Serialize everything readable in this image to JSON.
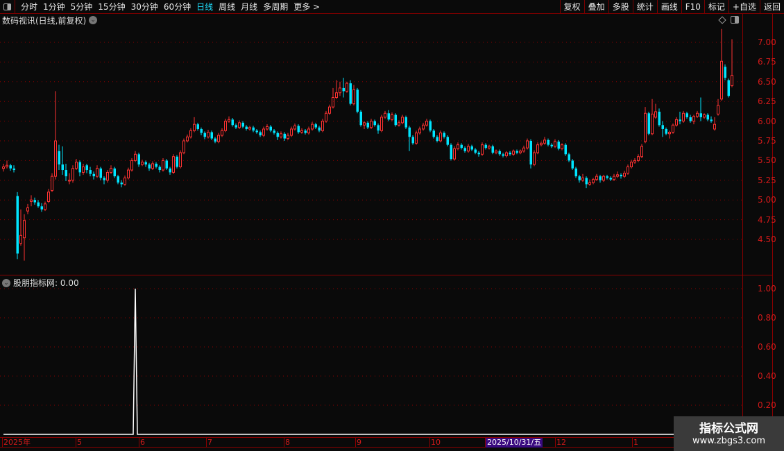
{
  "toolbar": {
    "periods": [
      "分时",
      "1分钟",
      "5分钟",
      "15分钟",
      "30分钟",
      "60分钟",
      "日线",
      "周线",
      "月线",
      "多周期",
      "更多 >"
    ],
    "active_period": "日线",
    "buttons": [
      "复权",
      "叠加",
      "多股",
      "统计",
      "画线",
      "F10",
      "标记",
      "+自选",
      "返回"
    ]
  },
  "chart_title": "数码视讯(日线,前复权)",
  "indicator": {
    "name": "股朋指标网",
    "value_text": ": 0.00"
  },
  "colors": {
    "up": "#ff3232",
    "down": "#00e5ff",
    "axis": "#d21a1a",
    "grid": "#8b0000",
    "indicator_line": "#ffffff",
    "background": "#0a0a0a"
  },
  "xaxis": {
    "labels": [
      "2025年",
      "5",
      "6",
      "7",
      "8",
      "9",
      "10",
      "12",
      "1"
    ],
    "cursor_label": "2025/10/31/五"
  },
  "watermark": {
    "line1": "指标公式网",
    "line2": "www.zbgs3.com"
  },
  "chart_data": [
    {
      "type": "candlestick",
      "title": "数码视讯(日线,前复权)",
      "ylim": [
        4.2,
        7.25
      ],
      "yticks": [
        "7.00",
        "6.75",
        "6.50",
        "6.25",
        "6.00",
        "5.75",
        "5.50",
        "5.25",
        "5.00",
        "4.75",
        "4.50"
      ],
      "grid": true,
      "ohlc": [
        [
          5.4,
          5.46,
          5.36,
          5.42
        ],
        [
          5.42,
          5.5,
          5.4,
          5.44
        ],
        [
          5.44,
          5.46,
          5.37,
          5.4
        ],
        [
          5.4,
          5.44,
          5.35,
          5.38
        ],
        [
          5.05,
          5.1,
          4.25,
          4.32
        ],
        [
          4.45,
          4.88,
          4.42,
          4.55
        ],
        [
          4.52,
          4.82,
          4.23,
          4.74
        ],
        [
          4.86,
          4.95,
          4.82,
          4.9
        ],
        [
          4.98,
          5.06,
          4.92,
          5.0
        ],
        [
          5.0,
          5.03,
          4.94,
          4.97
        ],
        [
          4.97,
          5.0,
          4.9,
          4.92
        ],
        [
          4.92,
          4.96,
          4.85,
          4.88
        ],
        [
          4.88,
          4.98,
          4.86,
          4.95
        ],
        [
          4.98,
          5.14,
          4.96,
          5.1
        ],
        [
          5.12,
          5.34,
          5.1,
          5.3
        ],
        [
          5.3,
          6.38,
          5.26,
          5.75
        ],
        [
          5.62,
          5.7,
          5.38,
          5.45
        ],
        [
          5.45,
          5.68,
          5.32,
          5.38
        ],
        [
          5.38,
          5.46,
          5.24,
          5.3
        ],
        [
          5.24,
          5.34,
          5.2,
          5.25
        ],
        [
          5.25,
          5.44,
          5.22,
          5.4
        ],
        [
          5.4,
          5.52,
          5.38,
          5.48
        ],
        [
          5.48,
          5.5,
          5.3,
          5.35
        ],
        [
          5.35,
          5.46,
          5.32,
          5.42
        ],
        [
          5.44,
          5.46,
          5.34,
          5.38
        ],
        [
          5.38,
          5.42,
          5.3,
          5.33
        ],
        [
          5.33,
          5.36,
          5.26,
          5.3
        ],
        [
          5.3,
          5.44,
          5.28,
          5.4
        ],
        [
          5.4,
          5.42,
          5.25,
          5.28
        ],
        [
          5.28,
          5.3,
          5.2,
          5.25
        ],
        [
          5.25,
          5.38,
          5.22,
          5.35
        ],
        [
          5.35,
          5.44,
          5.33,
          5.4
        ],
        [
          5.4,
          5.42,
          5.28,
          5.3
        ],
        [
          5.3,
          5.32,
          5.2,
          5.22
        ],
        [
          5.22,
          5.25,
          5.16,
          5.2
        ],
        [
          5.2,
          5.31,
          5.18,
          5.28
        ],
        [
          5.28,
          5.41,
          5.26,
          5.38
        ],
        [
          5.38,
          5.53,
          5.36,
          5.5
        ],
        [
          5.5,
          5.62,
          5.48,
          5.58
        ],
        [
          5.58,
          5.6,
          5.42,
          5.45
        ],
        [
          5.45,
          5.51,
          5.43,
          5.48
        ],
        [
          5.48,
          5.5,
          5.42,
          5.45
        ],
        [
          5.45,
          5.47,
          5.37,
          5.4
        ],
        [
          5.4,
          5.49,
          5.38,
          5.46
        ],
        [
          5.46,
          5.48,
          5.4,
          5.42
        ],
        [
          5.42,
          5.44,
          5.35,
          5.38
        ],
        [
          5.38,
          5.53,
          5.36,
          5.5
        ],
        [
          5.5,
          5.52,
          5.38,
          5.4
        ],
        [
          5.4,
          5.42,
          5.32,
          5.35
        ],
        [
          5.35,
          5.58,
          5.33,
          5.55
        ],
        [
          5.55,
          5.57,
          5.4,
          5.42
        ],
        [
          5.42,
          5.63,
          5.4,
          5.6
        ],
        [
          5.6,
          5.78,
          5.58,
          5.75
        ],
        [
          5.75,
          5.83,
          5.73,
          5.8
        ],
        [
          5.8,
          5.91,
          5.78,
          5.88
        ],
        [
          5.88,
          6.05,
          5.86,
          5.96
        ],
        [
          5.96,
          5.98,
          5.88,
          5.9
        ],
        [
          5.9,
          5.92,
          5.82,
          5.85
        ],
        [
          5.85,
          5.87,
          5.77,
          5.8
        ],
        [
          5.8,
          5.89,
          5.78,
          5.86
        ],
        [
          5.86,
          5.88,
          5.76,
          5.78
        ],
        [
          5.78,
          5.8,
          5.72,
          5.74
        ],
        [
          5.74,
          5.85,
          5.72,
          5.82
        ],
        [
          5.82,
          5.91,
          5.8,
          5.88
        ],
        [
          5.88,
          6.03,
          5.86,
          6.0
        ],
        [
          6.0,
          6.06,
          5.98,
          6.02
        ],
        [
          6.02,
          6.04,
          5.93,
          5.95
        ],
        [
          5.95,
          5.97,
          5.9,
          5.92
        ],
        [
          5.92,
          6.01,
          5.9,
          5.98
        ],
        [
          5.98,
          6.0,
          5.91,
          5.93
        ],
        [
          5.93,
          5.95,
          5.88,
          5.9
        ],
        [
          5.9,
          5.94,
          5.88,
          5.92
        ],
        [
          5.92,
          5.94,
          5.86,
          5.88
        ],
        [
          5.88,
          5.9,
          5.84,
          5.86
        ],
        [
          5.86,
          5.88,
          5.8,
          5.82
        ],
        [
          5.82,
          5.93,
          5.8,
          5.9
        ],
        [
          5.9,
          5.96,
          5.88,
          5.93
        ],
        [
          5.93,
          5.95,
          5.86,
          5.88
        ],
        [
          5.88,
          5.9,
          5.83,
          5.85
        ],
        [
          5.85,
          5.87,
          5.76,
          5.8
        ],
        [
          5.8,
          5.87,
          5.78,
          5.84
        ],
        [
          5.84,
          5.86,
          5.75,
          5.78
        ],
        [
          5.78,
          5.85,
          5.76,
          5.82
        ],
        [
          5.82,
          5.93,
          5.8,
          5.9
        ],
        [
          5.9,
          5.97,
          5.88,
          5.94
        ],
        [
          5.94,
          5.96,
          5.84,
          5.86
        ],
        [
          5.86,
          5.91,
          5.84,
          5.88
        ],
        [
          5.88,
          5.9,
          5.83,
          5.85
        ],
        [
          5.85,
          5.93,
          5.83,
          5.9
        ],
        [
          5.9,
          5.99,
          5.88,
          5.96
        ],
        [
          5.96,
          5.98,
          5.9,
          5.92
        ],
        [
          5.92,
          5.94,
          5.86,
          5.88
        ],
        [
          5.88,
          6.03,
          5.86,
          6.0
        ],
        [
          6.0,
          6.13,
          5.98,
          6.1
        ],
        [
          6.1,
          6.21,
          6.08,
          6.18
        ],
        [
          6.18,
          6.42,
          6.16,
          6.3
        ],
        [
          6.3,
          6.52,
          6.28,
          6.36
        ],
        [
          6.36,
          6.5,
          6.32,
          6.42
        ],
        [
          6.42,
          6.55,
          6.3,
          6.38
        ],
        [
          6.38,
          6.5,
          6.36,
          6.48
        ],
        [
          6.48,
          6.52,
          6.2,
          6.22
        ],
        [
          6.22,
          6.46,
          6.2,
          6.4
        ],
        [
          6.4,
          6.42,
          6.1,
          6.12
        ],
        [
          6.12,
          6.14,
          5.93,
          5.95
        ],
        [
          5.95,
          6.0,
          5.9,
          5.98
        ],
        [
          5.98,
          6.0,
          5.9,
          5.92
        ],
        [
          5.92,
          6.03,
          5.9,
          6.0
        ],
        [
          6.0,
          6.02,
          5.93,
          5.95
        ],
        [
          5.95,
          5.97,
          5.84,
          5.88
        ],
        [
          5.88,
          6.08,
          5.86,
          6.05
        ],
        [
          6.05,
          6.13,
          6.03,
          6.1
        ],
        [
          6.1,
          6.14,
          6.0,
          6.02
        ],
        [
          6.02,
          6.11,
          6.0,
          6.08
        ],
        [
          6.08,
          6.1,
          5.93,
          5.95
        ],
        [
          5.95,
          6.01,
          5.93,
          5.98
        ],
        [
          5.98,
          6.08,
          5.96,
          6.05
        ],
        [
          6.05,
          6.07,
          5.9,
          5.92
        ],
        [
          5.92,
          5.94,
          5.62,
          5.8
        ],
        [
          5.8,
          5.82,
          5.7,
          5.72
        ],
        [
          5.72,
          5.88,
          5.7,
          5.85
        ],
        [
          5.85,
          5.93,
          5.83,
          5.9
        ],
        [
          5.9,
          5.98,
          5.88,
          5.95
        ],
        [
          5.95,
          6.03,
          5.93,
          6.0
        ],
        [
          6.0,
          6.02,
          5.86,
          5.88
        ],
        [
          5.88,
          5.9,
          5.78,
          5.8
        ],
        [
          5.8,
          5.82,
          5.73,
          5.75
        ],
        [
          5.75,
          5.88,
          5.73,
          5.85
        ],
        [
          5.85,
          5.87,
          5.78,
          5.8
        ],
        [
          5.8,
          5.82,
          5.68,
          5.7
        ],
        [
          5.7,
          5.72,
          5.5,
          5.52
        ],
        [
          5.52,
          5.68,
          5.5,
          5.65
        ],
        [
          5.65,
          5.73,
          5.63,
          5.7
        ],
        [
          5.7,
          5.72,
          5.64,
          5.66
        ],
        [
          5.66,
          5.68,
          5.6,
          5.62
        ],
        [
          5.62,
          5.71,
          5.6,
          5.68
        ],
        [
          5.68,
          5.7,
          5.62,
          5.64
        ],
        [
          5.64,
          5.66,
          5.58,
          5.6
        ],
        [
          5.6,
          5.62,
          5.55,
          5.58
        ],
        [
          5.58,
          5.73,
          5.56,
          5.7
        ],
        [
          5.7,
          5.72,
          5.64,
          5.66
        ],
        [
          5.66,
          5.7,
          5.64,
          5.68
        ],
        [
          5.68,
          5.7,
          5.58,
          5.6
        ],
        [
          5.6,
          5.64,
          5.58,
          5.62
        ],
        [
          5.62,
          5.64,
          5.56,
          5.58
        ],
        [
          5.58,
          5.6,
          5.54,
          5.56
        ],
        [
          5.56,
          5.62,
          5.54,
          5.6
        ],
        [
          5.6,
          5.62,
          5.56,
          5.58
        ],
        [
          5.58,
          5.64,
          5.56,
          5.62
        ],
        [
          5.62,
          5.64,
          5.58,
          5.6
        ],
        [
          5.6,
          5.64,
          5.58,
          5.62
        ],
        [
          5.62,
          5.69,
          5.6,
          5.66
        ],
        [
          5.66,
          5.78,
          5.64,
          5.75
        ],
        [
          5.75,
          5.77,
          5.4,
          5.45
        ],
        [
          5.45,
          5.63,
          5.43,
          5.6
        ],
        [
          5.6,
          5.73,
          5.58,
          5.7
        ],
        [
          5.7,
          5.74,
          5.68,
          5.72
        ],
        [
          5.72,
          5.8,
          5.7,
          5.76
        ],
        [
          5.76,
          5.78,
          5.68,
          5.7
        ],
        [
          5.7,
          5.72,
          5.66,
          5.68
        ],
        [
          5.68,
          5.77,
          5.66,
          5.74
        ],
        [
          5.74,
          5.76,
          5.63,
          5.65
        ],
        [
          5.65,
          5.72,
          5.63,
          5.7
        ],
        [
          5.7,
          5.72,
          5.56,
          5.58
        ],
        [
          5.58,
          5.6,
          5.48,
          5.5
        ],
        [
          5.5,
          5.52,
          5.38,
          5.4
        ],
        [
          5.4,
          5.42,
          5.28,
          5.3
        ],
        [
          5.3,
          5.32,
          5.22,
          5.25
        ],
        [
          5.25,
          5.33,
          5.23,
          5.28
        ],
        [
          5.28,
          5.3,
          5.15,
          5.2
        ],
        [
          5.2,
          5.26,
          5.18,
          5.22
        ],
        [
          5.22,
          5.28,
          5.2,
          5.26
        ],
        [
          5.26,
          5.33,
          5.24,
          5.3
        ],
        [
          5.3,
          5.32,
          5.22,
          5.25
        ],
        [
          5.25,
          5.32,
          5.23,
          5.3
        ],
        [
          5.3,
          5.32,
          5.26,
          5.28
        ],
        [
          5.28,
          5.3,
          5.24,
          5.26
        ],
        [
          5.26,
          5.33,
          5.24,
          5.3
        ],
        [
          5.3,
          5.36,
          5.28,
          5.32
        ],
        [
          5.32,
          5.34,
          5.27,
          5.3
        ],
        [
          5.3,
          5.37,
          5.28,
          5.34
        ],
        [
          5.34,
          5.45,
          5.32,
          5.42
        ],
        [
          5.42,
          5.51,
          5.4,
          5.48
        ],
        [
          5.48,
          5.53,
          5.46,
          5.5
        ],
        [
          5.5,
          5.58,
          5.48,
          5.55
        ],
        [
          5.55,
          5.71,
          5.53,
          5.68
        ],
        [
          5.74,
          6.18,
          5.72,
          6.1
        ],
        [
          6.1,
          6.12,
          5.82,
          5.84
        ],
        [
          5.84,
          6.28,
          5.82,
          6.09
        ],
        [
          6.05,
          6.22,
          6.03,
          6.12
        ],
        [
          6.12,
          6.16,
          5.93,
          5.95
        ],
        [
          5.95,
          6.0,
          5.8,
          5.9
        ],
        [
          5.9,
          5.92,
          5.82,
          5.84
        ],
        [
          5.84,
          5.88,
          5.78,
          5.86
        ],
        [
          5.86,
          5.97,
          5.84,
          5.95
        ],
        [
          5.95,
          6.05,
          5.93,
          6.02
        ],
        [
          6.02,
          6.12,
          5.96,
          6.0
        ],
        [
          6.0,
          6.13,
          5.98,
          6.1
        ],
        [
          6.1,
          6.12,
          6.03,
          6.05
        ],
        [
          6.05,
          6.08,
          5.98,
          6.0
        ],
        [
          6.0,
          6.08,
          5.96,
          6.06
        ],
        [
          6.06,
          6.13,
          6.04,
          6.1
        ],
        [
          6.1,
          6.3,
          6.0,
          6.05
        ],
        [
          6.05,
          6.1,
          6.03,
          6.08
        ],
        [
          6.08,
          6.1,
          6.0,
          6.02
        ],
        [
          6.02,
          6.06,
          5.98,
          6.0
        ],
        [
          5.9,
          6.05,
          5.88,
          5.96
        ],
        [
          6.09,
          6.28,
          6.07,
          6.2
        ],
        [
          6.28,
          7.17,
          6.26,
          6.76
        ],
        [
          6.69,
          6.72,
          6.52,
          6.55
        ],
        [
          6.52,
          6.54,
          6.3,
          6.32
        ],
        [
          6.45,
          7.04,
          6.43,
          6.58
        ]
      ]
    },
    {
      "type": "line",
      "title": "股朋指标网",
      "ylim": [
        0,
        1.05
      ],
      "yticks": [
        "1.00",
        "0.80",
        "0.60",
        "0.40",
        "0.20"
      ],
      "default_value": 0,
      "nonzero_points": [
        {
          "index": 38,
          "value": 1.0
        }
      ],
      "grid": true
    }
  ]
}
